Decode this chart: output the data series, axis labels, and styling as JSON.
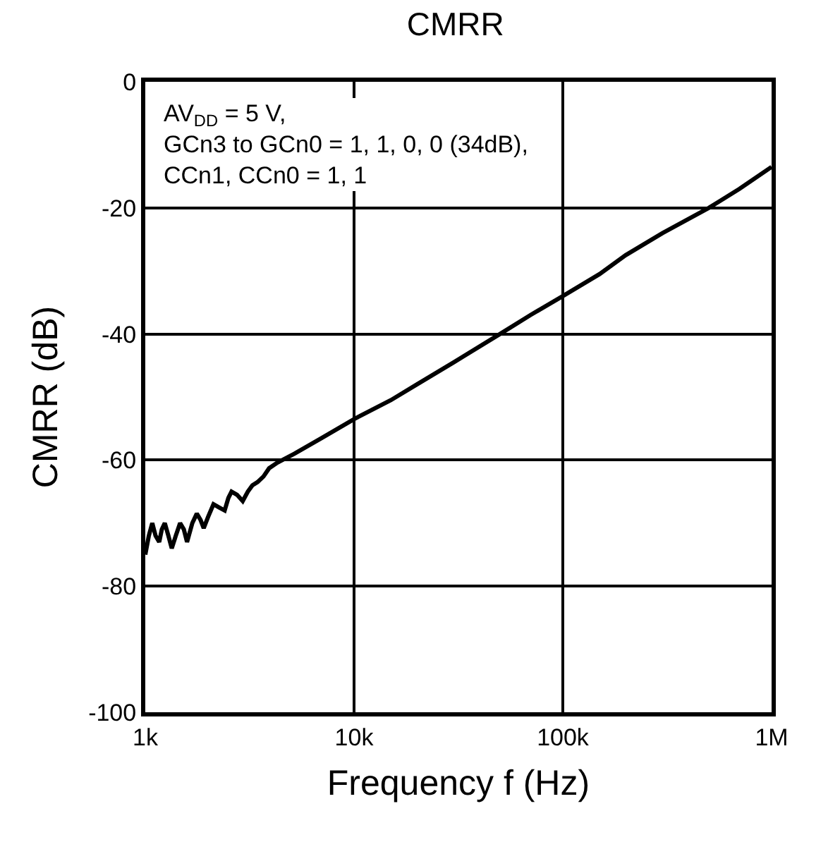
{
  "chart_data": {
    "type": "line",
    "title": "CMRR",
    "xlabel": "Frequency f (Hz)",
    "ylabel": "CMRR (dB)",
    "log": "x",
    "grid": true,
    "legend": false,
    "x": [
      1000,
      1040,
      1080,
      1120,
      1166,
      1200,
      1240,
      1290,
      1339,
      1400,
      1468,
      1530,
      1585,
      1680,
      1765,
      1840,
      1905,
      2000,
      2121,
      2250,
      2400,
      2500,
      2589,
      2750,
      2929,
      3100,
      3258,
      3450,
      3684,
      3919,
      4291,
      5179,
      7000,
      10000,
      15000,
      20000,
      30000,
      50000,
      70000,
      100000,
      150000,
      200000,
      300000,
      500000,
      700000,
      1000000
    ],
    "series": [
      {
        "color": "#000000",
        "values": [
          -75,
          -72,
          -70,
          -72,
          -73,
          -71,
          -70,
          -72,
          -74,
          -72,
          -70,
          -71,
          -73,
          -70,
          -68.5,
          -69.5,
          -70.8,
          -69,
          -67,
          -67.5,
          -68,
          -66,
          -65,
          -65.5,
          -66.5,
          -65,
          -64,
          -63.5,
          -62.6,
          -61.3,
          -60.4,
          -59,
          -56.5,
          -53.5,
          -50.5,
          -48,
          -44.5,
          -40,
          -37,
          -34,
          -30.5,
          -27.5,
          -24,
          -20,
          -17,
          -13.5
        ]
      }
    ],
    "xlim": [
      1000,
      1000000
    ],
    "ylim": [
      -100,
      0
    ],
    "xticks": [
      {
        "value": 1000,
        "label": "1k"
      },
      {
        "value": 10000,
        "label": "10k"
      },
      {
        "value": 100000,
        "label": "100k"
      },
      {
        "value": 1000000,
        "label": "1M"
      }
    ],
    "yticks": [
      -100,
      -80,
      -60,
      -40,
      -20,
      0
    ],
    "annotations": [
      "AV$_{DD}$ = 5 V,\nGCn3 to GCn0 = 1, 1, 0, 0 (34dB),\nCCn1, CCn0 = 1, 1"
    ]
  }
}
